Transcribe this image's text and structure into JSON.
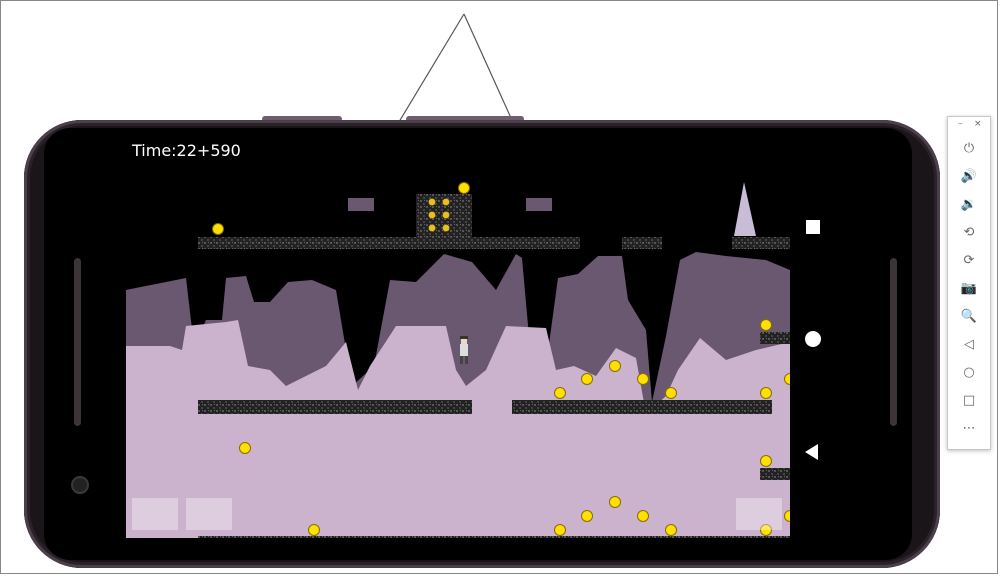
{
  "hud": {
    "time_label": "Time:22+590"
  },
  "emulator_toolbar": {
    "minimize": "–",
    "close": "×",
    "tools": [
      {
        "name": "power-icon",
        "glyph": "⏻"
      },
      {
        "name": "volume-up-icon",
        "glyph": "🔊"
      },
      {
        "name": "volume-down-icon",
        "glyph": "🔉"
      },
      {
        "name": "rotate-left-icon",
        "glyph": "⟲"
      },
      {
        "name": "rotate-right-icon",
        "glyph": "⟳"
      },
      {
        "name": "camera-icon",
        "glyph": "📷"
      },
      {
        "name": "zoom-icon",
        "glyph": "🔍"
      },
      {
        "name": "back-icon",
        "glyph": "◁"
      },
      {
        "name": "home-icon",
        "glyph": "○"
      },
      {
        "name": "overview-icon",
        "glyph": "□"
      },
      {
        "name": "more-icon",
        "glyph": "⋯"
      }
    ]
  },
  "colors": {
    "sky": "#000000",
    "far_mountain": "#6a5870",
    "near_ground": "#cbb3ce",
    "coin": "#ffe000",
    "platform": "#2a2a2a",
    "arrow": "#555555"
  }
}
